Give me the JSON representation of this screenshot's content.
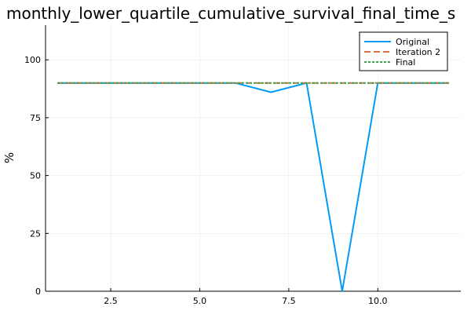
{
  "chart_data": {
    "type": "line",
    "title": "monthly_lower_quartile_cumulative_survival_final_time_s",
    "xlabel": "",
    "ylabel": "%",
    "xlim": [
      0.67,
      12.33
    ],
    "ylim": [
      0,
      115
    ],
    "x_ticks": [
      2.5,
      5.0,
      7.5,
      10.0
    ],
    "x_tick_labels": [
      "2.5",
      "5.0",
      "7.5",
      "10.0"
    ],
    "y_ticks": [
      0,
      25,
      50,
      75,
      100
    ],
    "y_tick_labels": [
      "0",
      "25",
      "50",
      "75",
      "100"
    ],
    "grid": true,
    "legend_position": "top-right",
    "series": [
      {
        "name": "Original",
        "color": "#009af9",
        "style": "solid",
        "x": [
          1,
          2,
          3,
          4,
          5,
          6,
          7,
          8,
          9,
          10,
          11,
          12
        ],
        "y": [
          90,
          90,
          90,
          90,
          90,
          90,
          86,
          90,
          0,
          90,
          90,
          90
        ]
      },
      {
        "name": "Iteration 2",
        "color": "#e26f46",
        "style": "dashed",
        "x": [
          1,
          2,
          3,
          4,
          5,
          6,
          7,
          8,
          9,
          10,
          11,
          12
        ],
        "y": [
          90,
          90,
          90,
          90,
          90,
          90,
          90,
          90,
          90,
          90,
          90,
          90
        ]
      },
      {
        "name": "Final",
        "color": "#3da44d",
        "style": "dotted",
        "x": [
          1,
          2,
          3,
          4,
          5,
          6,
          7,
          8,
          9,
          10,
          11,
          12
        ],
        "y": [
          90,
          90,
          90,
          90,
          90,
          90,
          90,
          90,
          90,
          90,
          90,
          90
        ]
      }
    ]
  }
}
